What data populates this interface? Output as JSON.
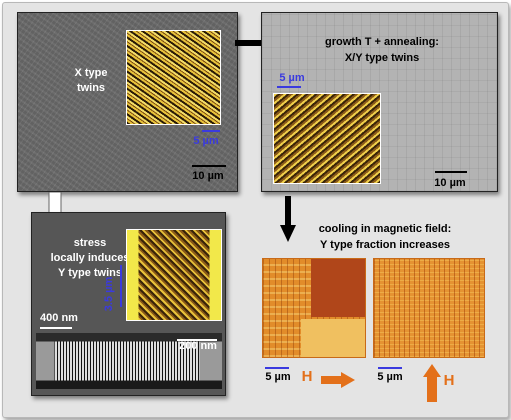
{
  "panel_top_left": {
    "label": [
      "X type",
      "twins"
    ],
    "inset_scale": "5 µm",
    "scale": "10 µm"
  },
  "panel_top_right": {
    "scale_top": "5 µm",
    "scale": "10 µm"
  },
  "arrow_right_text": [
    "growth T + annealing:",
    "X/Y type twins"
  ],
  "panel_bottom_left": {
    "label": [
      "stress",
      "locally induces",
      "Y type twins"
    ],
    "scale_inset_v": "3.5 µm",
    "scale_400": "400 nm",
    "scale_200": "200 nm"
  },
  "cooling_text": [
    "cooling in magnetic field:",
    "Y type fraction increases"
  ],
  "orange_left": {
    "scale": "5 µm",
    "field": "H"
  },
  "orange_right": {
    "scale": "5 µm",
    "field": "H"
  },
  "colors": {
    "blue_scale": "#3a3adf",
    "orange_arrow": "#e3701a",
    "white_label": "#ffffff"
  }
}
